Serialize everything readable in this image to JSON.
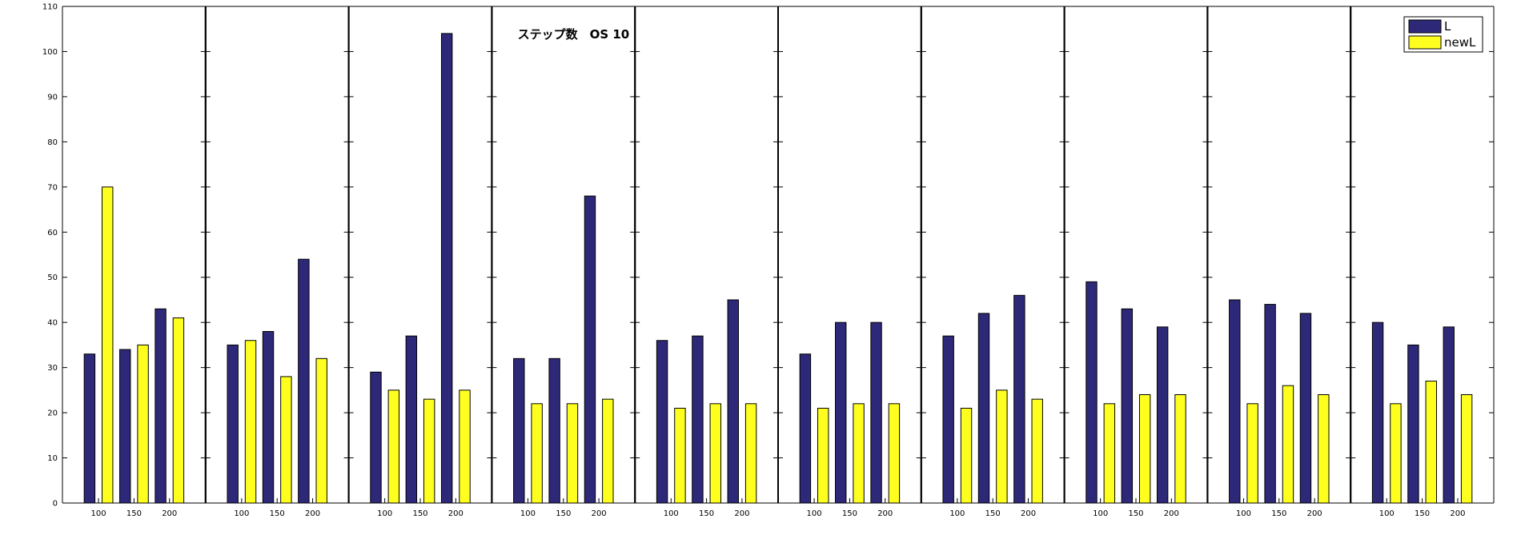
{
  "chart_data": {
    "type": "bar",
    "title": "ステップ数　OS 10",
    "title_panel_index": 3,
    "legend": {
      "entries": [
        "L",
        "newL"
      ],
      "placement": "top-right"
    },
    "ylim": [
      0,
      110
    ],
    "yticks": [
      0,
      10,
      20,
      30,
      40,
      50,
      60,
      70,
      80,
      90,
      100,
      110
    ],
    "categories": [
      "100",
      "150",
      "200"
    ],
    "series_colors": [
      "#2E2878",
      "#FFFF1F"
    ],
    "panels": [
      {
        "series": [
          {
            "name": "L",
            "values": [
              33,
              34,
              43
            ]
          },
          {
            "name": "newL",
            "values": [
              70,
              35,
              41
            ]
          }
        ]
      },
      {
        "series": [
          {
            "name": "L",
            "values": [
              35,
              38,
              54
            ]
          },
          {
            "name": "newL",
            "values": [
              36,
              28,
              32
            ]
          }
        ]
      },
      {
        "series": [
          {
            "name": "L",
            "values": [
              29,
              37,
              104
            ]
          },
          {
            "name": "newL",
            "values": [
              25,
              23,
              25
            ]
          }
        ]
      },
      {
        "series": [
          {
            "name": "L",
            "values": [
              32,
              32,
              68
            ]
          },
          {
            "name": "newL",
            "values": [
              22,
              22,
              23
            ]
          }
        ]
      },
      {
        "series": [
          {
            "name": "L",
            "values": [
              36,
              37,
              45
            ]
          },
          {
            "name": "newL",
            "values": [
              21,
              22,
              22
            ]
          }
        ]
      },
      {
        "series": [
          {
            "name": "L",
            "values": [
              33,
              40,
              40
            ]
          },
          {
            "name": "newL",
            "values": [
              21,
              22,
              22
            ]
          }
        ]
      },
      {
        "series": [
          {
            "name": "L",
            "values": [
              37,
              42,
              46
            ]
          },
          {
            "name": "newL",
            "values": [
              21,
              25,
              23
            ]
          }
        ]
      },
      {
        "series": [
          {
            "name": "L",
            "values": [
              49,
              43,
              39
            ]
          },
          {
            "name": "newL",
            "values": [
              22,
              24,
              24
            ]
          }
        ]
      },
      {
        "series": [
          {
            "name": "L",
            "values": [
              45,
              44,
              42
            ]
          },
          {
            "name": "newL",
            "values": [
              22,
              26,
              24
            ]
          }
        ]
      },
      {
        "series": [
          {
            "name": "L",
            "values": [
              40,
              35,
              39
            ]
          },
          {
            "name": "newL",
            "values": [
              22,
              27,
              24
            ]
          }
        ]
      }
    ]
  }
}
